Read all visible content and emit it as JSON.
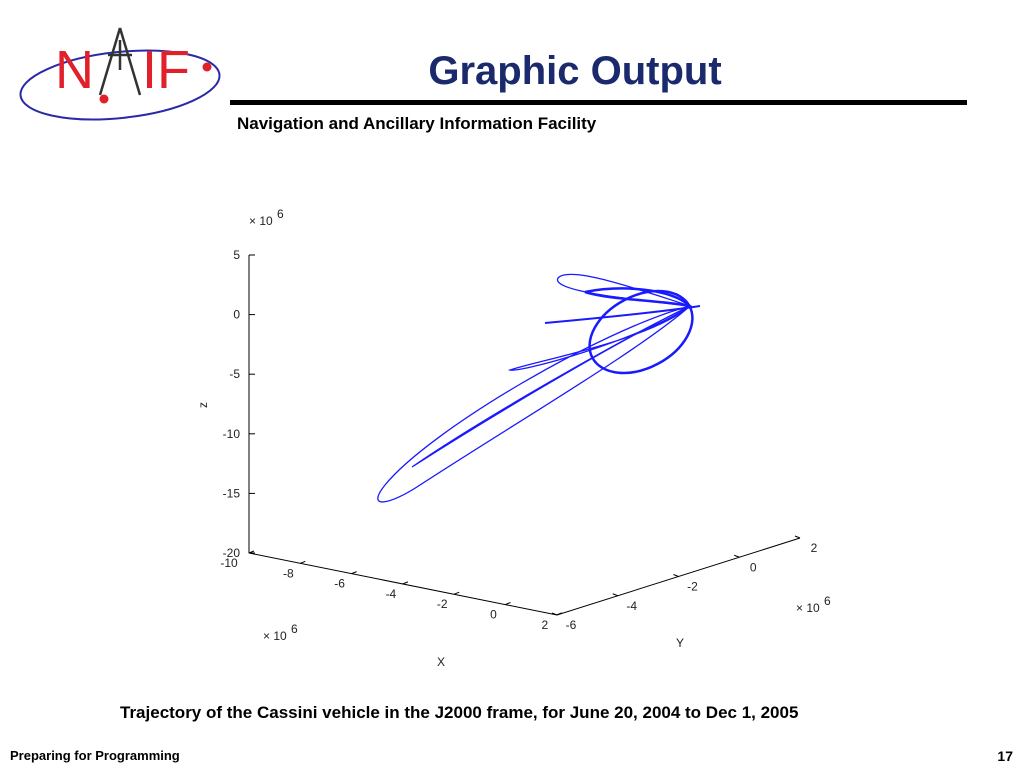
{
  "logo": {
    "left": "N",
    "right": "IF"
  },
  "header": {
    "title": "Graphic Output",
    "subtitle": "Navigation and Ancillary Information Facility"
  },
  "figure": {
    "z_axis": {
      "label": "z",
      "multiplier": "× 10",
      "exponent": "6",
      "ticks": [
        "5",
        "0",
        "-5",
        "-10",
        "-15",
        "-20"
      ]
    },
    "x_axis": {
      "label": "X",
      "multiplier": "× 10",
      "exponent": "6",
      "ticks": [
        "-10",
        "-8",
        "-6",
        "-4",
        "-2",
        "0",
        "2"
      ]
    },
    "y_axis": {
      "label": "Y",
      "multiplier": "× 10",
      "exponent": "6",
      "ticks": [
        "-6",
        "-4",
        "-2",
        "0",
        "2"
      ]
    }
  },
  "caption": "Trajectory of the Cassini vehicle in the J2000 frame, for June 20, 2004 to Dec 1, 2005",
  "footer": {
    "left": "Preparing for Programming",
    "page": "17"
  }
}
